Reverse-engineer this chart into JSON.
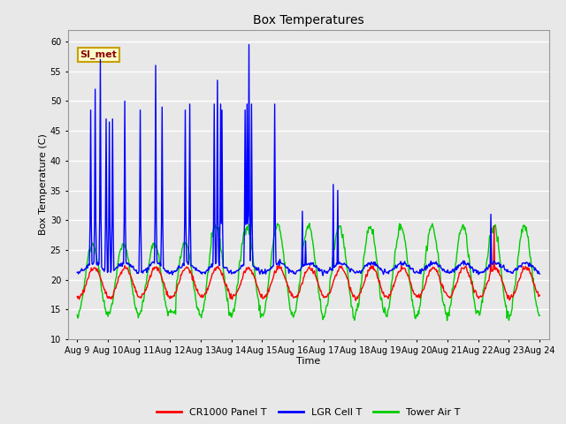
{
  "title": "Box Temperatures",
  "xlabel": "Time",
  "ylabel": "Box Temperature (C)",
  "ylim": [
    10,
    62
  ],
  "yticks": [
    10,
    15,
    20,
    25,
    30,
    35,
    40,
    45,
    50,
    55,
    60
  ],
  "xtick_labels": [
    "Aug 9",
    "Aug 10",
    "Aug 11",
    "Aug 12",
    "Aug 13",
    "Aug 14",
    "Aug 15",
    "Aug 16",
    "Aug 17",
    "Aug 18",
    "Aug 19",
    "Aug 20",
    "Aug 21",
    "Aug 22",
    "Aug 23",
    "Aug 24"
  ],
  "annotation_text": "SI_met",
  "annotation_color": "#8B0000",
  "annotation_bg": "#FFFFCC",
  "annotation_border": "#C8A000",
  "line_colors": {
    "panel": "#FF0000",
    "lgr": "#0000FF",
    "tower": "#00CC00"
  },
  "line_widths": {
    "panel": 1.0,
    "lgr": 1.0,
    "tower": 1.0
  },
  "legend_labels": [
    "CR1000 Panel T",
    "LGR Cell T",
    "Tower Air T"
  ],
  "bg_color": "#E8E8E8",
  "plot_bg_color": "#E8E8E8",
  "grid_color": "#FFFFFF",
  "grid_linewidth": 1.0,
  "title_fontsize": 10,
  "axis_label_fontsize": 8,
  "tick_fontsize": 7
}
